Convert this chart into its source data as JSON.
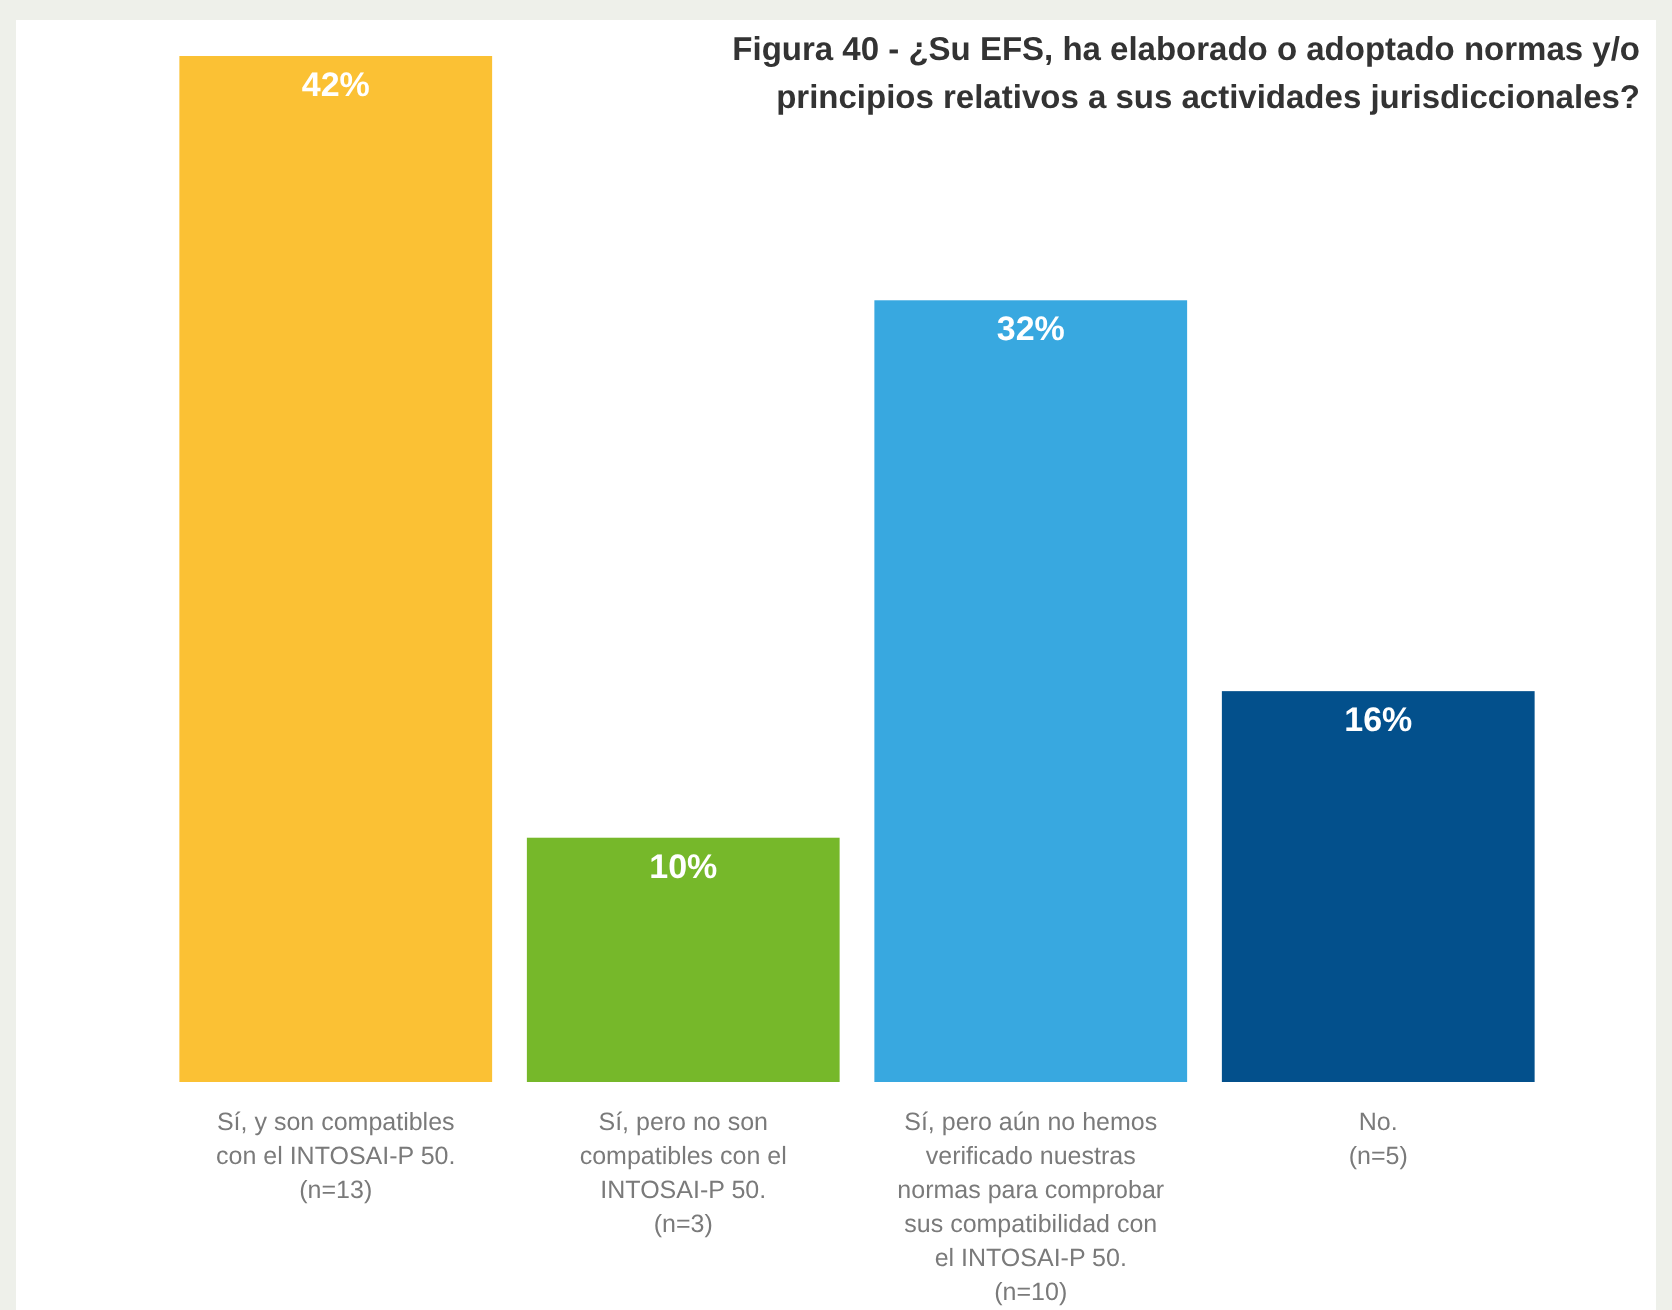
{
  "chart_data": {
    "type": "bar",
    "title": "Figura 40 - ¿Su EFS, ha elaborado o adoptado normas y/o\nprincipios relativos a sus actividades jurisdiccionales?",
    "categories": [
      "Sí, y son compatibles\ncon el INTOSAI-P 50.\n(n=13)",
      "Sí, pero no son\ncompatibles con el\nINTOSAI-P 50.\n(n=3)",
      "Sí, pero aún no hemos\nverificado nuestras\nnormas para comprobar\nsus compatibilidad con\nel INTOSAI-P 50.\n(n=10)",
      "No.\n(n=5)"
    ],
    "values": [
      42,
      10,
      32,
      16
    ],
    "colors": [
      "#fbc134",
      "#76b82a",
      "#38a8e0",
      "#03508c"
    ],
    "value_labels": [
      "42%",
      "10%",
      "32%",
      "16%"
    ]
  }
}
